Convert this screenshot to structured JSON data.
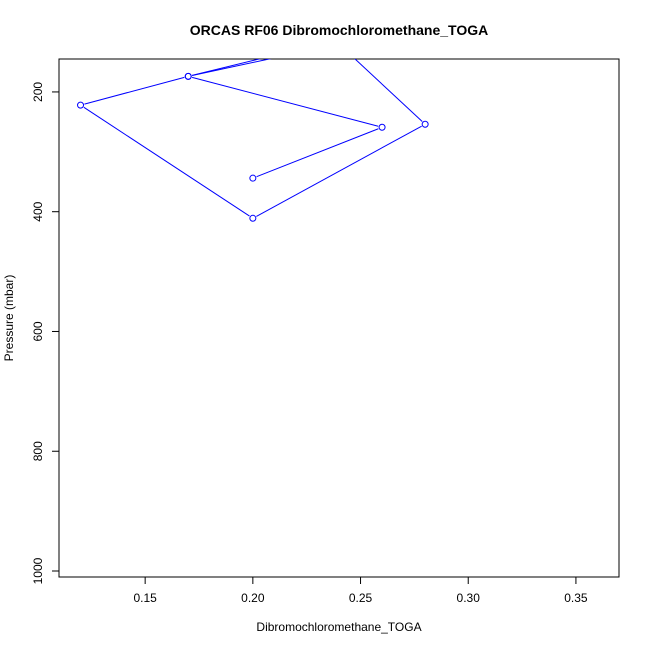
{
  "chart_data": {
    "type": "line",
    "title": "ORCAS RF06 Dibromochloromethane_TOGA",
    "xlabel": "Dibromochloromethane_TOGA",
    "ylabel": "Pressure (mbar)",
    "xlim": [
      0.11,
      0.37
    ],
    "ylim": [
      1010,
      145
    ],
    "y_reversed": true,
    "x_ticks": [
      0.15,
      0.2,
      0.25,
      0.3,
      0.35
    ],
    "x_tick_labels": [
      "0.15",
      "0.20",
      "0.25",
      "0.30",
      "0.35"
    ],
    "y_ticks": [
      200,
      400,
      600,
      800,
      1000
    ],
    "y_tick_labels": [
      "200",
      "400",
      "600",
      "800",
      "1000"
    ],
    "grid": false,
    "series": [
      {
        "color": "#0000ff",
        "marker": "open-circle",
        "points": [
          {
            "x": 0.2,
            "y": 344
          },
          {
            "x": 0.26,
            "y": 259
          },
          {
            "x": 0.17,
            "y": 174
          },
          {
            "x": 0.12,
            "y": 222
          },
          {
            "x": 0.2,
            "y": 411
          },
          {
            "x": 0.28,
            "y": 254
          },
          {
            "x": 0.24,
            "y": 120
          },
          {
            "x": 0.17,
            "y": 174
          },
          {
            "x": 0.22,
            "y": 130
          }
        ],
        "markers_visible": [
          true,
          true,
          true,
          true,
          true,
          true,
          false,
          true,
          false
        ]
      }
    ]
  }
}
